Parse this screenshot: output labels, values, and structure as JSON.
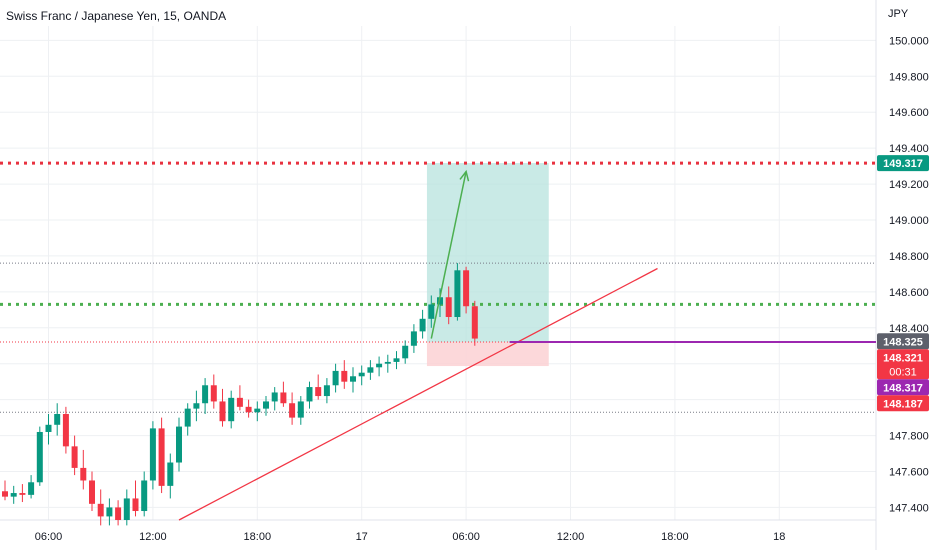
{
  "header": {
    "title": "Swiss Franc / Japanese Yen, 15, OANDA",
    "currency": "JPY"
  },
  "colors": {
    "bull": "#089981",
    "bear": "#f23645",
    "wick_bull": "#089981",
    "wick_bear": "#f23645",
    "target_line": "#e8313f",
    "entry_line": "#4caf50",
    "current_line": "#9c27b0",
    "profit_zone": "#b7e3dd",
    "loss_zone": "#fbd1d3",
    "trend_line": "#f23645",
    "arrow": "#4caf50",
    "grid": "#eef0f3"
  },
  "chart_data": {
    "type": "candlestick",
    "title": "Swiss Franc / Japanese Yen, 15, OANDA",
    "xlabel": "",
    "ylabel": "",
    "ylim": [
      147.33,
      150.08
    ],
    "grid": true,
    "y_ticks": [
      "150.000",
      "149.800",
      "149.600",
      "149.400",
      "149.200",
      "149.000",
      "148.800",
      "148.600",
      "148.400",
      "148.200",
      "148.000",
      "147.800",
      "147.600",
      "147.400"
    ],
    "x_ticks": [
      {
        "label": "06:00",
        "bar": 5
      },
      {
        "label": "12:00",
        "bar": 17
      },
      {
        "label": "18:00",
        "bar": 29
      },
      {
        "label": "17",
        "bar": 41
      },
      {
        "label": "06:00",
        "bar": 53
      },
      {
        "label": "12:00",
        "bar": 65
      },
      {
        "label": "18:00",
        "bar": 77
      },
      {
        "label": "18",
        "bar": 89
      }
    ],
    "candles": [
      [
        147.49,
        147.55,
        147.44,
        147.46
      ],
      [
        147.46,
        147.52,
        147.42,
        147.48
      ],
      [
        147.48,
        147.53,
        147.43,
        147.47
      ],
      [
        147.47,
        147.58,
        147.45,
        147.54
      ],
      [
        147.54,
        147.85,
        147.52,
        147.82
      ],
      [
        147.82,
        147.92,
        147.75,
        147.86
      ],
      [
        147.86,
        147.98,
        147.8,
        147.92
      ],
      [
        147.92,
        147.96,
        147.7,
        147.74
      ],
      [
        147.74,
        147.8,
        147.58,
        147.62
      ],
      [
        147.62,
        147.72,
        147.5,
        147.55
      ],
      [
        147.55,
        147.6,
        147.38,
        147.42
      ],
      [
        147.42,
        147.5,
        147.3,
        147.35
      ],
      [
        147.35,
        147.45,
        147.3,
        147.4
      ],
      [
        147.4,
        147.44,
        147.3,
        147.33
      ],
      [
        147.33,
        147.5,
        147.3,
        147.45
      ],
      [
        147.45,
        147.55,
        147.35,
        147.38
      ],
      [
        147.38,
        147.6,
        147.35,
        147.55
      ],
      [
        147.55,
        147.88,
        147.5,
        147.84
      ],
      [
        147.84,
        147.9,
        147.48,
        147.52
      ],
      [
        147.52,
        147.7,
        147.45,
        147.65
      ],
      [
        147.65,
        147.9,
        147.6,
        147.85
      ],
      [
        147.85,
        147.98,
        147.8,
        147.95
      ],
      [
        147.95,
        148.05,
        147.88,
        147.98
      ],
      [
        147.98,
        148.12,
        147.92,
        148.08
      ],
      [
        148.08,
        148.14,
        147.95,
        147.99
      ],
      [
        147.99,
        148.06,
        147.85,
        147.88
      ],
      [
        147.88,
        148.05,
        147.84,
        148.01
      ],
      [
        148.01,
        148.08,
        147.94,
        147.96
      ],
      [
        147.96,
        148.0,
        147.9,
        147.93
      ],
      [
        147.93,
        147.99,
        147.88,
        147.95
      ],
      [
        147.95,
        148.02,
        147.91,
        147.99
      ],
      [
        147.99,
        148.07,
        147.94,
        148.04
      ],
      [
        148.04,
        148.1,
        147.96,
        147.98
      ],
      [
        147.98,
        148.04,
        147.86,
        147.9
      ],
      [
        147.9,
        148.02,
        147.86,
        147.99
      ],
      [
        147.99,
        148.1,
        147.95,
        148.07
      ],
      [
        148.07,
        148.14,
        148.0,
        148.02
      ],
      [
        148.02,
        148.12,
        147.98,
        148.08
      ],
      [
        148.08,
        148.2,
        148.04,
        148.16
      ],
      [
        148.16,
        148.22,
        148.06,
        148.1
      ],
      [
        148.1,
        148.18,
        148.04,
        148.13
      ],
      [
        148.13,
        148.19,
        148.08,
        148.15
      ],
      [
        148.15,
        148.22,
        148.11,
        148.18
      ],
      [
        148.18,
        148.24,
        148.13,
        148.2
      ],
      [
        148.2,
        148.25,
        148.15,
        148.21
      ],
      [
        148.21,
        148.27,
        148.17,
        148.23
      ],
      [
        148.23,
        148.33,
        148.2,
        148.3
      ],
      [
        148.3,
        148.42,
        148.26,
        148.38
      ],
      [
        148.38,
        148.5,
        148.34,
        148.45
      ],
      [
        148.45,
        148.58,
        148.4,
        148.53
      ],
      [
        148.53,
        148.62,
        148.46,
        148.57
      ],
      [
        148.57,
        148.63,
        148.42,
        148.46
      ],
      [
        148.46,
        148.76,
        148.44,
        148.72
      ],
      [
        148.72,
        148.74,
        148.48,
        148.52
      ],
      [
        148.52,
        148.55,
        148.3,
        148.34
      ]
    ],
    "levels": {
      "target": 149.317,
      "entry": 148.53,
      "current": 148.321,
      "stop": 148.187,
      "box_top": 149.317,
      "box_mid": 148.321,
      "box_bottom": 148.187,
      "upper_dotted": 148.76,
      "lower_dotted": 147.93
    },
    "trendline": [
      {
        "bar": 20,
        "price": 147.33
      },
      {
        "bar": 57,
        "price": 148.6
      },
      {
        "bar": 75,
        "price": 148.73
      }
    ],
    "box_bars": [
      48.5,
      62.5
    ],
    "arrow": [
      {
        "bar": 49,
        "price": 148.34
      },
      {
        "bar": 53,
        "price": 149.27
      }
    ],
    "price_tags": [
      {
        "text": "149.317",
        "price": 149.317,
        "color": "#089981"
      },
      {
        "text": "148.325",
        "price": 148.325,
        "color": "#5d606b"
      },
      {
        "text": "148.321",
        "price": 148.321,
        "color": "#f23645",
        "sub": "00:31"
      },
      {
        "text": "148.317",
        "price": 148.317,
        "color": "#9c27b0"
      },
      {
        "text": "148.187",
        "price": 148.187,
        "color": "#f23645"
      }
    ]
  }
}
